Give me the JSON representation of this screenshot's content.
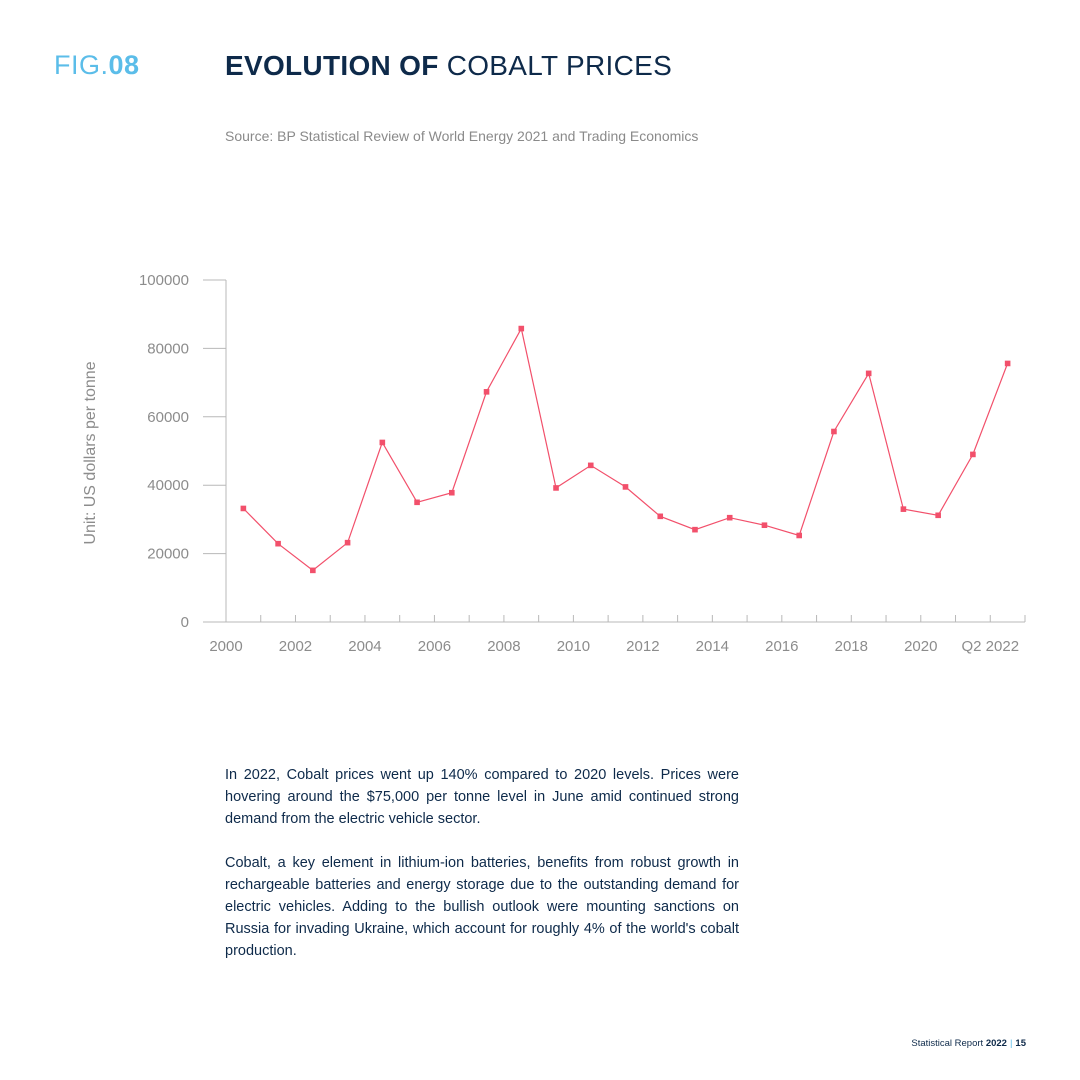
{
  "header": {
    "fig_prefix": "FIG.",
    "fig_number": "08",
    "title_bold": "EVOLUTION OF",
    "title_light": "COBALT PRICES",
    "source": "Source: BP Statistical Review of World Energy 2021 and Trading Economics"
  },
  "chart_data": {
    "type": "line",
    "title": "EVOLUTION OF COBALT PRICES",
    "xlabel": "",
    "ylabel": "Unit: US dollars per tonne",
    "ylim": [
      0,
      100000
    ],
    "y_ticks": [
      "0",
      "20000",
      "40000",
      "60000",
      "80000",
      "100000"
    ],
    "x_tick_labels": [
      "2000",
      "2002",
      "2004",
      "2006",
      "2008",
      "2010",
      "2012",
      "2014",
      "2016",
      "2018",
      "2020",
      "Q2 2022"
    ],
    "x": [
      "2000",
      "2001",
      "2002",
      "2003",
      "2004",
      "2005",
      "2006",
      "2007",
      "2008",
      "2009",
      "2010",
      "2011",
      "2012",
      "2013",
      "2014",
      "2015",
      "2016",
      "2017",
      "2018",
      "2019",
      "2020",
      "2021",
      "Q2 2022"
    ],
    "series": [
      {
        "values": [
          33200,
          22900,
          15100,
          23200,
          52500,
          35000,
          37800,
          67300,
          85800,
          39200,
          45800,
          39500,
          30900,
          27000,
          30500,
          28300,
          25300,
          55700,
          72700,
          33000,
          31200,
          49000,
          75600
        ]
      }
    ],
    "line_color": "#f2506b",
    "grid": false
  },
  "body": {
    "paragraphs": [
      "In 2022, Cobalt prices went up 140% compared to 2020 levels. Prices were hovering around the $75,000 per tonne level in June amid continued strong demand from the electric vehicle sector.",
      "Cobalt, a key element in lithium-ion batteries, benefits from robust growth in rechargeable batteries and energy storage due to the outstanding demand for electric vehicles. Adding to the bullish outlook were mounting sanctions on Russia for invading Ukraine, which account for roughly 4% of the world's cobalt production."
    ]
  },
  "footer": {
    "report_label": "Statistical Report",
    "year": "2022",
    "separator": "|",
    "page_number": "15"
  }
}
